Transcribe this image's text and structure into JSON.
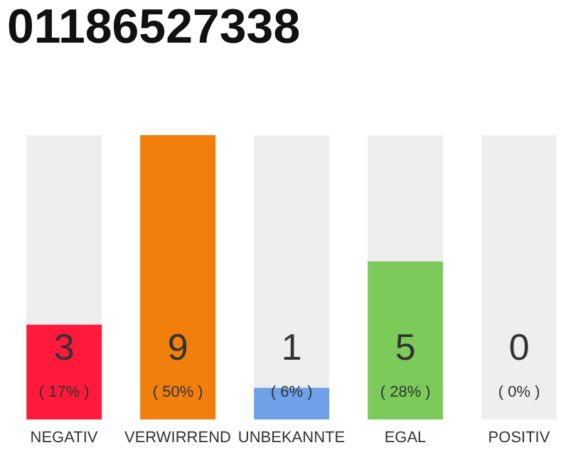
{
  "chart_data": {
    "type": "bar",
    "title": "01186527338",
    "categories": [
      "NEGATIV",
      "VERWIRREND",
      "UNBEKANNTE",
      "EGAL",
      "POSITIV"
    ],
    "values": [
      3,
      9,
      1,
      5,
      0
    ],
    "colors": [
      "#ff1a3c",
      "#f07f0c",
      "#6fa0e8",
      "#7ccb5a",
      "#eeeeee"
    ],
    "value_labels": [
      "3\n( 17% )",
      "9\n( 50% )",
      "1\n( 6% )",
      "5\n( 28% )",
      "0\n( 0% )"
    ]
  }
}
